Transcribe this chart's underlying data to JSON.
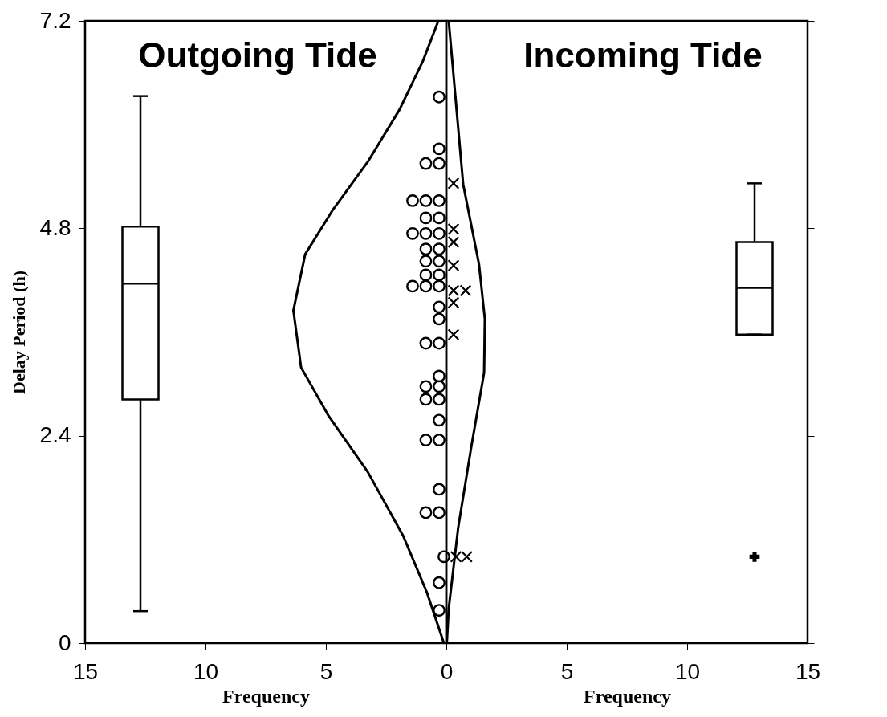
{
  "chart_data": [
    {
      "type": "scatter",
      "title": "Outgoing Tide",
      "xlabel": "Frequency",
      "ylabel": "Delay Period (h)",
      "xlim": [
        15,
        0
      ],
      "xticks": [
        15,
        10,
        5,
        0
      ],
      "ylim": [
        0,
        7.2
      ],
      "yticks": [
        0,
        2.4,
        4.8,
        7.2
      ],
      "grid": false,
      "series": [
        {
          "type": "box",
          "color": "#000000",
          "x": [
            12.7
          ],
          "boxes": [
            {
              "low": 0.37,
              "q1": 2.82,
              "median": 4.16,
              "q3": 4.82,
              "high": 6.33
            }
          ]
        },
        {
          "marker": "circle",
          "color": "#000000",
          "x": [
            0.3,
            0.3,
            0.3,
            0.85,
            0.3,
            0.85,
            1.4,
            0.3,
            0.85,
            0.3,
            0.85,
            1.4,
            0.3,
            0.85,
            0.3,
            0.85,
            0.3,
            0.85,
            0.3,
            0.85,
            1.4,
            0.3,
            0.3,
            0.3,
            0.85,
            0.3,
            0.3,
            0.85,
            0.3,
            0.85,
            0.3,
            0.3,
            0.85,
            0.3,
            0.3,
            0.85,
            0.1,
            0.3,
            0.3
          ],
          "values": [
            6.32,
            5.72,
            5.55,
            5.55,
            5.12,
            5.12,
            5.12,
            4.92,
            4.92,
            4.74,
            4.74,
            4.74,
            4.56,
            4.56,
            4.42,
            4.42,
            4.26,
            4.26,
            4.13,
            4.13,
            4.13,
            3.89,
            3.75,
            3.47,
            3.47,
            3.09,
            2.97,
            2.97,
            2.82,
            2.82,
            2.58,
            2.35,
            2.35,
            1.78,
            1.51,
            1.51,
            1.0,
            0.7,
            0.38
          ]
        },
        {
          "type": "line",
          "line_style": "solid",
          "color": "#000000",
          "x": [
            0.33,
            0.98,
            1.95,
            3.26,
            4.72,
            5.86,
            6.35,
            6.03,
            4.89,
            3.26,
            1.79,
            0.81,
            0.1
          ],
          "values": [
            7.2,
            6.73,
            6.17,
            5.57,
            5.01,
            4.5,
            3.85,
            3.19,
            2.63,
            1.98,
            1.24,
            0.59,
            0
          ]
        }
      ]
    },
    {
      "type": "scatter",
      "title": "Incoming Tide",
      "xlabel": "Frequency",
      "xlim": [
        0,
        15
      ],
      "xticks": [
        {
          "value": 0,
          "label": null
        },
        5,
        10,
        15
      ],
      "ylim": [
        0,
        7.2
      ],
      "yticks": [
        0,
        2.4,
        4.8,
        7.2
      ],
      "tick_labels": "x",
      "grid": false,
      "series": [
        {
          "type": "box",
          "color": "#000000",
          "x": [
            12.8
          ],
          "boxes": [
            {
              "low": 3.57,
              "q1": 3.57,
              "median": 4.11,
              "q3": 4.64,
              "high": 5.32,
              "outliers": [
                1.0
              ]
            }
          ]
        },
        {
          "marker": "cross",
          "color": "#000000",
          "x": [
            0.3,
            0.3,
            0.3,
            0.3,
            0.3,
            0.8,
            0.3,
            0.3,
            0.4,
            0.85
          ],
          "values": [
            5.32,
            4.79,
            4.64,
            4.37,
            4.08,
            4.08,
            3.94,
            3.57,
            1.0,
            1.0
          ]
        },
        {
          "type": "line",
          "line_style": "solid",
          "color": "#000000",
          "x": [
            0.1,
            0.7,
            1.36,
            1.6,
            1.57,
            1.03,
            0.49,
            0.1,
            0.02
          ],
          "values": [
            7.2,
            5.31,
            4.38,
            3.75,
            3.13,
            2.26,
            1.33,
            0.4,
            0
          ]
        }
      ]
    }
  ]
}
